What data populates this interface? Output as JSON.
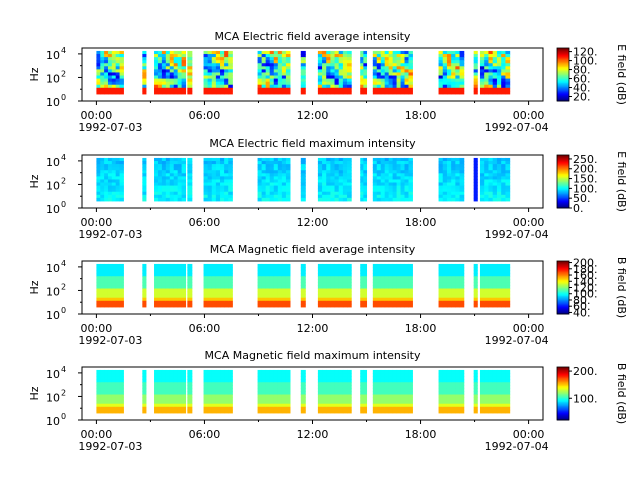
{
  "chart_data": [
    {
      "type": "heatmap",
      "title": "MCA  Electric field average intensity",
      "ylabel": "Hz",
      "colorbar_label": "E field (dB)",
      "colorbar_ticks": [
        "20.",
        "40.",
        "60.",
        "80.",
        "100.",
        "120."
      ],
      "colorbar_range": [
        10,
        128
      ],
      "y_tick_labels": [
        "10",
        "10",
        "10"
      ],
      "y_tick_exponents": [
        "0",
        "2",
        "4"
      ],
      "x_tick_labels": [
        "00:00",
        "06:00",
        "12:00",
        "18:00",
        "00:00"
      ],
      "date_labels": [
        "1992-07-03",
        "1992-07-04"
      ],
      "base_level": 0.45,
      "variation": 0.45,
      "variant": "e-avg"
    },
    {
      "type": "heatmap",
      "title": "MCA  Electric field maximum intensity",
      "ylabel": "Hz",
      "colorbar_label": "E field (dB)",
      "colorbar_ticks": [
        "0.",
        "50.",
        "100.",
        "150.",
        "200.",
        "250."
      ],
      "colorbar_range": [
        0,
        270
      ],
      "y_tick_labels": [
        "10",
        "10",
        "10"
      ],
      "y_tick_exponents": [
        "0",
        "2",
        "4"
      ],
      "x_tick_labels": [
        "00:00",
        "06:00",
        "12:00",
        "18:00",
        "00:00"
      ],
      "date_labels": [
        "1992-07-03",
        "1992-07-04"
      ],
      "base_level": 0.37,
      "variation": 0.08,
      "variant": "e-max"
    },
    {
      "type": "heatmap",
      "title": "MCA  Magnetic field average intensity",
      "ylabel": "Hz",
      "colorbar_label": "B field (dB)",
      "colorbar_ticks": [
        "40.",
        "60.",
        "80.",
        "100.",
        "120.",
        "140.",
        "160.",
        "180.",
        "200."
      ],
      "colorbar_range": [
        35,
        205
      ],
      "y_tick_labels": [
        "10",
        "10",
        "10"
      ],
      "y_tick_exponents": [
        "0",
        "2",
        "4"
      ],
      "x_tick_labels": [
        "00:00",
        "06:00",
        "12:00",
        "18:00",
        "00:00"
      ],
      "date_labels": [
        "1992-07-03",
        "1992-07-04"
      ],
      "base_level": 0.4,
      "variation": 0.0,
      "variant": "b-avg"
    },
    {
      "type": "heatmap",
      "title": "MCA  Magnetic field maximum intensity",
      "ylabel": "Hz",
      "colorbar_label": "B field (dB)",
      "colorbar_ticks": [
        "100.",
        "200."
      ],
      "colorbar_range": [
        20,
        215
      ],
      "y_tick_labels": [
        "10",
        "10",
        "10"
      ],
      "y_tick_exponents": [
        "0",
        "2",
        "4"
      ],
      "x_tick_labels": [
        "00:00",
        "06:00",
        "12:00",
        "18:00",
        "00:00"
      ],
      "date_labels": [
        "1992-07-03",
        "1992-07-04"
      ],
      "base_level": 0.4,
      "variation": 0.0,
      "variant": "b-max"
    }
  ],
  "segments_hours": [
    [
      0.0,
      1.5
    ],
    [
      2.55,
      2.75
    ],
    [
      3.2,
      4.95
    ],
    [
      5.05,
      5.3
    ],
    [
      5.95,
      7.55
    ],
    [
      8.95,
      10.75
    ],
    [
      11.35,
      11.6
    ],
    [
      12.3,
      14.15
    ],
    [
      14.65,
      15.0
    ],
    [
      15.35,
      17.55
    ],
    [
      19.0,
      20.4
    ],
    [
      20.95,
      21.15
    ],
    [
      21.3,
      22.95
    ]
  ],
  "time_range_hours": [
    -0.8,
    24.8
  ],
  "log10_freq_range": [
    0,
    4.5
  ],
  "log10_freq_data_range": [
    0.6,
    4.25
  ]
}
